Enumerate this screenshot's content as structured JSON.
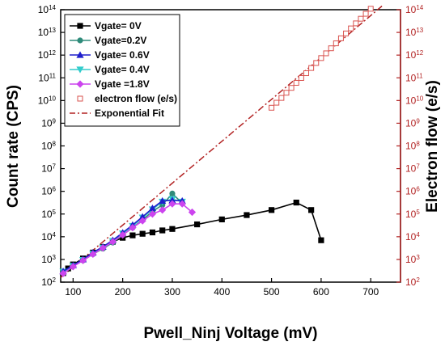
{
  "chart_data": {
    "type": "scatter",
    "xlabel": "Pwell_Ninj Voltage (mV)",
    "ylabel": "Count rate (CPS)",
    "y2label": "Electron flow (e/s)",
    "xlim": [
      75,
      760
    ],
    "ylim_log10": [
      2,
      14
    ],
    "x_ticks": [
      100,
      200,
      300,
      400,
      500,
      600,
      700
    ],
    "x_tick_labels": [
      "100",
      "200",
      "300",
      "400",
      "500",
      "600",
      "700"
    ],
    "y_tick_exponents": [
      2,
      3,
      4,
      5,
      6,
      7,
      8,
      9,
      10,
      11,
      12,
      13,
      14
    ],
    "y_tick_base": "10",
    "legend_position": "top-left",
    "colors": {
      "axis_right": "#b22222"
    },
    "series": [
      {
        "name": "Vgate= 0V",
        "axis": "left",
        "color": "#000000",
        "marker": "square-filled",
        "x": [
          80,
          90,
          100,
          120,
          140,
          160,
          180,
          200,
          220,
          240,
          260,
          280,
          300,
          350,
          400,
          450,
          500,
          550,
          580,
          600
        ],
        "y": [
          250,
          400,
          600,
          1100,
          2000,
          3500,
          6000,
          9000,
          11500,
          13500,
          15500,
          19000,
          22000,
          35000,
          58000,
          90000,
          150000,
          320000,
          150000,
          7000
        ]
      },
      {
        "name": "Vgate=0.2V",
        "axis": "left",
        "color": "#2e8b7a",
        "marker": "circle-filled",
        "x": [
          80,
          100,
          120,
          140,
          160,
          180,
          200,
          220,
          240,
          260,
          280,
          300,
          320
        ],
        "y": [
          280,
          500,
          900,
          1700,
          3000,
          5500,
          12000,
          25000,
          55000,
          130000,
          250000,
          800000,
          300000
        ]
      },
      {
        "name": "Vgate= 0.6V",
        "axis": "left",
        "color": "#1f1fcc",
        "marker": "triangle-up-filled",
        "x": [
          80,
          100,
          120,
          140,
          160,
          180,
          200,
          220,
          240,
          260,
          280,
          300,
          320
        ],
        "y": [
          300,
          550,
          1000,
          2000,
          3600,
          7000,
          15000,
          33000,
          75000,
          180000,
          380000,
          400000,
          380000
        ]
      },
      {
        "name": "Vgate= 0.4V",
        "axis": "left",
        "color": "#33cccc",
        "marker": "triangle-down-filled",
        "x": [
          80,
          100,
          120,
          140,
          160,
          180,
          200,
          220,
          240,
          260,
          280,
          300,
          320
        ],
        "y": [
          290,
          520,
          950,
          1800,
          3300,
          6500,
          14000,
          30000,
          70000,
          160000,
          350000,
          450000,
          350000
        ]
      },
      {
        "name": "Vgate =1.8V",
        "axis": "left",
        "color": "#cc44ee",
        "marker": "diamond-filled",
        "x": [
          80,
          100,
          120,
          140,
          160,
          180,
          200,
          220,
          240,
          260,
          280,
          300,
          320,
          340
        ],
        "y": [
          240,
          480,
          900,
          1700,
          3200,
          6000,
          12000,
          25000,
          50000,
          100000,
          150000,
          280000,
          280000,
          120000
        ]
      },
      {
        "name": "electron flow (e/s)",
        "axis": "right",
        "color": "#d9534f",
        "marker": "square-open",
        "x": [
          500,
          510,
          520,
          530,
          540,
          550,
          560,
          570,
          580,
          590,
          600,
          610,
          620,
          630,
          640,
          650,
          660,
          670,
          680,
          690,
          700
        ],
        "y": [
          4800000000.0,
          8000000000.0,
          13000000000.0,
          22000000000.0,
          36000000000.0,
          60000000000.0,
          98000000000.0,
          160000000000.0,
          270000000000.0,
          450000000000.0,
          740000000000.0,
          1200000000000.0,
          2000000000000.0,
          3300000000000.0,
          5500000000000.0,
          9000000000000.0,
          15000000000000.0,
          25000000000000.0,
          40000000000000.0,
          66000000000000.0,
          110000000000000.0
        ]
      },
      {
        "name": "Exponential Fit",
        "axis": "right",
        "color": "#b22222",
        "line": "dash-dot",
        "x": [
          75,
          725
        ],
        "y": [
          160,
          160000000000000.0
        ]
      }
    ]
  }
}
